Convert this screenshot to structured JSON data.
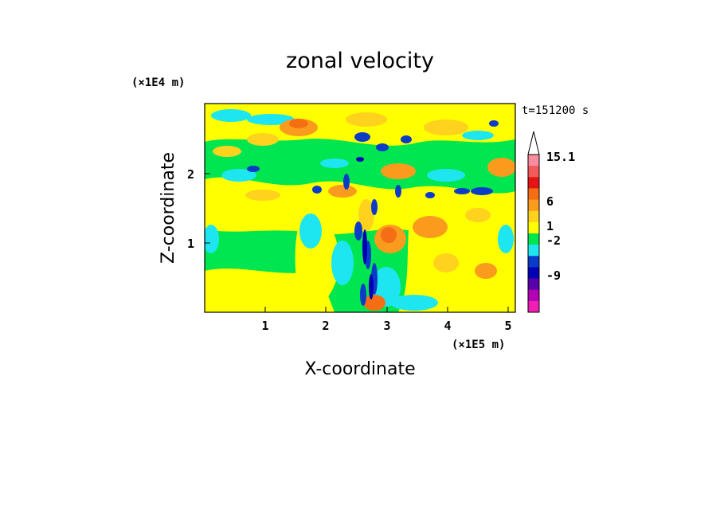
{
  "chart_data": {
    "type": "heatmap",
    "title": "zonal velocity",
    "xlabel": "X-coordinate",
    "ylabel": "Z-coordinate",
    "x_unit": "(×1E5 m)",
    "y_unit": "(×1E4 m)",
    "time_label": "t=151200 s",
    "xlim": [
      0,
      5.12
    ],
    "ylim": [
      0,
      2.95
    ],
    "x_ticks": [
      "1",
      "2",
      "3",
      "4",
      "5"
    ],
    "y_ticks": [
      "1",
      "2"
    ],
    "colorbar": {
      "labels": [
        "15.1",
        "6",
        "1",
        "-2",
        "-9"
      ],
      "colors": [
        "#fa8ca0",
        "#f55a5a",
        "#e61414",
        "#f56e14",
        "#fa9b1e",
        "#ffd21e",
        "#ffff00",
        "#00e650",
        "#1ee6f0",
        "#0a3cc8",
        "#0000b4",
        "#5a00aa",
        "#b400b4",
        "#f01eb4"
      ]
    },
    "field_colors": {
      "strong_positive": "#f56e14",
      "positive": "#fa9b1e",
      "weak_positive": "#ffd21e",
      "near_zero": "#ffff00",
      "weak_negative": "#00e650",
      "negative": "#1ee6f0",
      "strong_negative": "#0a3cc8",
      "very_negative": "#0000b4"
    },
    "grid": false
  }
}
